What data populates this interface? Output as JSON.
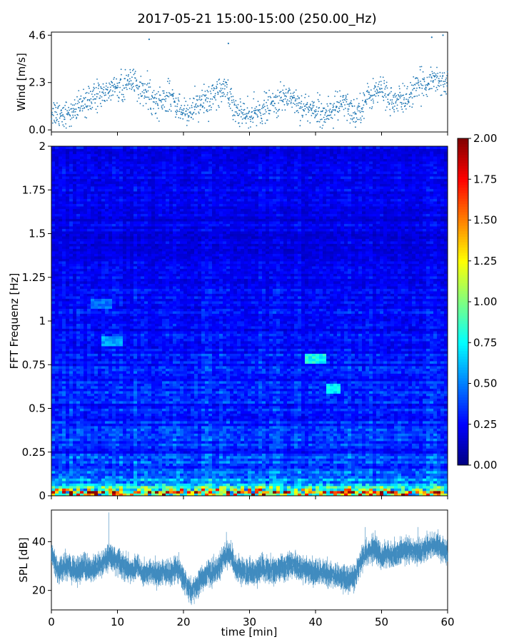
{
  "figure": {
    "title": "2017-05-21 15:00-15:00 (250.00_Hz)"
  },
  "chart_data": [
    {
      "type": "scatter",
      "name": "wind_panel",
      "ylabel": "Wind [m/s]",
      "xlim": [
        0,
        60
      ],
      "ylim": [
        -0.1,
        4.75
      ],
      "yticks": [
        0.0,
        2.3,
        4.6
      ],
      "ytick_labels": [
        "0.0",
        "2.3",
        "4.6"
      ],
      "xticks": [
        0,
        10,
        20,
        30,
        40,
        50,
        60
      ],
      "marker_color": "#1f77b4",
      "trend_x_min": [
        0,
        2,
        4,
        6,
        8,
        10,
        12,
        14,
        16,
        18,
        20,
        22,
        24,
        26,
        28,
        30,
        32,
        34,
        36,
        38,
        40,
        42,
        44,
        46,
        48,
        50,
        52,
        54,
        56,
        58,
        60
      ],
      "trend_wind_ms": [
        0.9,
        0.8,
        1.0,
        1.5,
        1.8,
        2.1,
        2.3,
        1.9,
        1.3,
        1.6,
        0.9,
        1.1,
        1.5,
        2.2,
        1.0,
        0.6,
        1.0,
        1.3,
        1.7,
        1.1,
        1.0,
        0.8,
        1.3,
        0.8,
        1.6,
        2.0,
        1.3,
        1.6,
        2.2,
        2.5,
        2.3
      ],
      "peaks": [
        {
          "x": 14.8,
          "y": 4.4
        },
        {
          "x": 26.8,
          "y": 4.2
        },
        {
          "x": 57.6,
          "y": 4.5
        },
        {
          "x": 59.3,
          "y": 4.6
        }
      ]
    },
    {
      "type": "heatmap",
      "name": "spectrogram_panel",
      "ylabel": "FFT Frequenz [Hz]",
      "xlim": [
        0,
        60
      ],
      "ylim": [
        0,
        2
      ],
      "yticks": [
        0,
        0.25,
        0.5,
        0.75,
        1,
        1.25,
        1.5,
        1.75,
        2
      ],
      "ytick_labels": [
        "0",
        "0.25",
        "0.5",
        "0.75",
        "1",
        "1.25",
        "1.5",
        "1.75",
        "2"
      ],
      "colormap": "jet",
      "colorbar": {
        "vmin": 0.0,
        "vmax": 2.0,
        "ticks": [
          0.0,
          0.25,
          0.5,
          0.75,
          1.0,
          1.25,
          1.5,
          1.75,
          2.0
        ],
        "tick_labels": [
          "0.00",
          "0.25",
          "0.50",
          "0.75",
          "1.00",
          "1.25",
          "1.50",
          "1.75",
          "2.00"
        ]
      },
      "background_level_by_freq": [
        {
          "f": 0.0,
          "v": 1.3
        },
        {
          "f": 0.03,
          "v": 0.9
        },
        {
          "f": 0.06,
          "v": 0.6
        },
        {
          "f": 0.12,
          "v": 0.4
        },
        {
          "f": 0.25,
          "v": 0.33
        },
        {
          "f": 0.5,
          "v": 0.3
        },
        {
          "f": 0.75,
          "v": 0.28
        },
        {
          "f": 1.0,
          "v": 0.25
        },
        {
          "f": 1.5,
          "v": 0.2
        },
        {
          "f": 2.0,
          "v": 0.22
        }
      ],
      "hotspots": [
        {
          "t0": 38.5,
          "t1": 41.5,
          "f": 0.78,
          "v": 0.8
        },
        {
          "t0": 41.5,
          "t1": 44.0,
          "f": 0.62,
          "v": 0.75
        },
        {
          "t0": 7.5,
          "t1": 11.0,
          "f": 0.88,
          "v": 0.6
        },
        {
          "t0": 6.0,
          "t1": 9.0,
          "f": 1.1,
          "v": 0.5
        }
      ]
    },
    {
      "type": "area",
      "name": "spl_panel",
      "ylabel": "SPL [dB]",
      "xlabel": "time [min]",
      "xlim": [
        0,
        60
      ],
      "ylim": [
        12,
        53
      ],
      "yticks": [
        20,
        40
      ],
      "ytick_labels": [
        "20",
        "40"
      ],
      "xticks": [
        0,
        10,
        20,
        30,
        40,
        50,
        60
      ],
      "xtick_labels": [
        "0",
        "10",
        "20",
        "30",
        "40",
        "50",
        "60"
      ],
      "line_color": "#1f77b4",
      "x_min": [
        0,
        1,
        2,
        3,
        4,
        5,
        6,
        7,
        8,
        9,
        10,
        11,
        12,
        13,
        14,
        15,
        16,
        17,
        18,
        19,
        20,
        21,
        22,
        23,
        24,
        25,
        26,
        27,
        28,
        29,
        30,
        31,
        32,
        33,
        34,
        35,
        36,
        37,
        38,
        39,
        40,
        41,
        42,
        43,
        44,
        45,
        46,
        47,
        48,
        49,
        50,
        51,
        52,
        53,
        54,
        55,
        56,
        57,
        58,
        59,
        60
      ],
      "spl_db": [
        35,
        28,
        30,
        29,
        28,
        30,
        28,
        30,
        32,
        34,
        32,
        30,
        28,
        30,
        27,
        28,
        26,
        28,
        27,
        30,
        25,
        20,
        22,
        26,
        27,
        28,
        33,
        35,
        29,
        28,
        27,
        28,
        29,
        28,
        28,
        29,
        31,
        30,
        29,
        28,
        27,
        28,
        26,
        26,
        25,
        24,
        26,
        33,
        36,
        37,
        34,
        35,
        35,
        36,
        37,
        36,
        36,
        38,
        39,
        38,
        35
      ],
      "band_halfwidth_db": 3
    }
  ]
}
